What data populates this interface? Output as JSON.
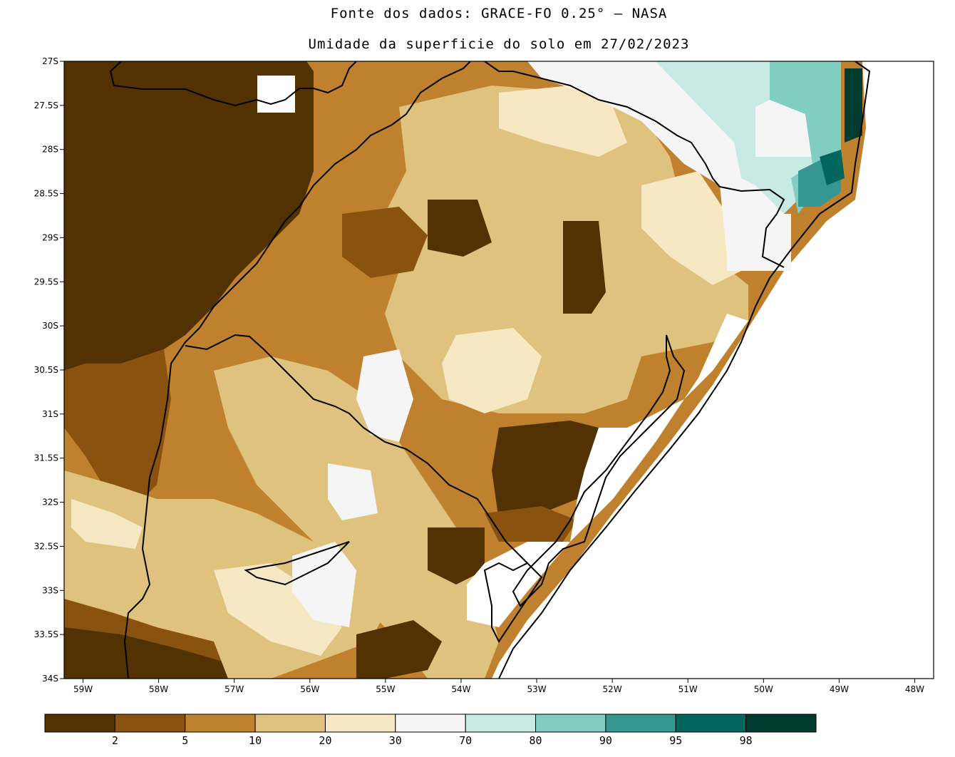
{
  "header": {
    "source": "Fonte dos dados: GRACE-FO 0.25° – NASA",
    "title": "Umidade da superficie do solo em 27/02/2023"
  },
  "map": {
    "lon_range": [
      -59.25,
      -47.75
    ],
    "lat_range": [
      -34,
      -27
    ],
    "lat_ticks": [
      "27S",
      "27.5S",
      "28S",
      "28.5S",
      "29S",
      "29.5S",
      "30S",
      "30.5S",
      "31S",
      "31.5S",
      "32S",
      "32.5S",
      "33S",
      "33.5S",
      "34S"
    ],
    "lon_ticks": [
      "59W",
      "58W",
      "57W",
      "56W",
      "55W",
      "54W",
      "53W",
      "52W",
      "51W",
      "50W",
      "49W",
      "48W"
    ]
  },
  "colorbar": {
    "colors": [
      "#523103",
      "#8a520f",
      "#bf812d",
      "#dfc27d",
      "#f6e8c3",
      "#f5f5f5",
      "#c7eae5",
      "#80cdc1",
      "#35978f",
      "#01665e",
      "#003c30"
    ],
    "labels": [
      "2",
      "5",
      "10",
      "20",
      "30",
      "70",
      "80",
      "90",
      "95",
      "98"
    ]
  }
}
